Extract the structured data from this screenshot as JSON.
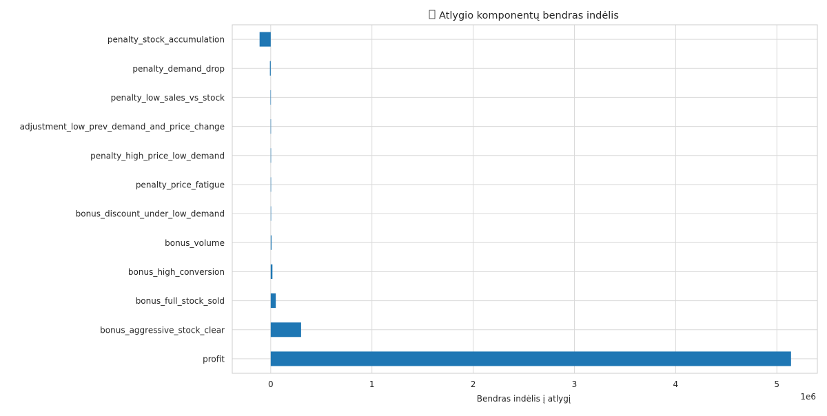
{
  "chart_data": {
    "type": "bar",
    "orientation": "horizontal",
    "title": "Atlygio komponentų bendras indėlis",
    "title_icon": "missing-glyph-box",
    "xlabel": "Bendras indėlis į atlygį",
    "ylabel": "",
    "xlim": [
      -380000,
      5400000
    ],
    "x_scale_label": "1e6",
    "x_ticks": [
      0,
      1000000,
      2000000,
      3000000,
      4000000,
      5000000
    ],
    "x_tick_labels": [
      "0",
      "1",
      "2",
      "3",
      "4",
      "5"
    ],
    "grid": true,
    "bar_color": "#1f77b4",
    "categories": [
      "penalty_stock_accumulation",
      "penalty_demand_drop",
      "penalty_low_sales_vs_stock",
      "adjustment_low_prev_demand_and_price_change",
      "penalty_high_price_low_demand",
      "penalty_price_fatigue",
      "bonus_discount_under_low_demand",
      "bonus_volume",
      "bonus_high_conversion",
      "bonus_full_stock_sold",
      "bonus_aggressive_stock_clear",
      "profit"
    ],
    "values": [
      -110000,
      -8000,
      -2000,
      -1000,
      -500,
      -300,
      1000,
      8000,
      17000,
      50000,
      300000,
      5140000
    ]
  }
}
